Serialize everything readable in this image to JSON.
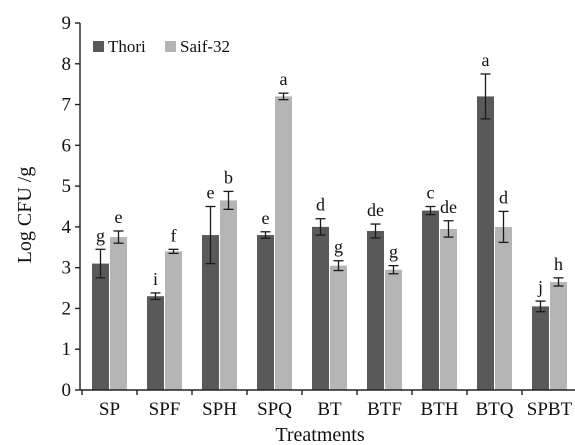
{
  "chart_data": {
    "type": "bar",
    "categories": [
      "SP",
      "SPF",
      "SPH",
      "SPQ",
      "BT",
      "BTF",
      "BTH",
      "BTQ",
      "SPBT"
    ],
    "series": [
      {
        "name": "Thori",
        "color": "#595959",
        "values": [
          3.1,
          2.3,
          3.8,
          3.8,
          4.0,
          3.9,
          4.4,
          7.2,
          2.05
        ],
        "errors": [
          0.35,
          0.08,
          0.7,
          0.08,
          0.2,
          0.17,
          0.1,
          0.55,
          0.13
        ],
        "labels": [
          "g",
          "i",
          "e",
          "e",
          "d",
          "de",
          "c",
          "a",
          "j"
        ]
      },
      {
        "name": "Saif-32",
        "color": "#b5b5b5",
        "values": [
          3.75,
          3.4,
          4.65,
          7.2,
          3.05,
          2.95,
          3.95,
          4.0,
          2.65
        ],
        "errors": [
          0.15,
          0.05,
          0.22,
          0.08,
          0.12,
          0.1,
          0.2,
          0.38,
          0.1
        ],
        "labels": [
          "e",
          "f",
          "b",
          "a",
          "g",
          "g",
          "de",
          "d",
          "h"
        ]
      }
    ],
    "xlabel": "Treatments",
    "ylabel": "Log CFU /g",
    "ylim": [
      0,
      9
    ],
    "yticks": [
      0,
      1,
      2,
      3,
      4,
      5,
      6,
      7,
      8,
      9
    ],
    "legend_position": "top-left",
    "grid": false
  }
}
